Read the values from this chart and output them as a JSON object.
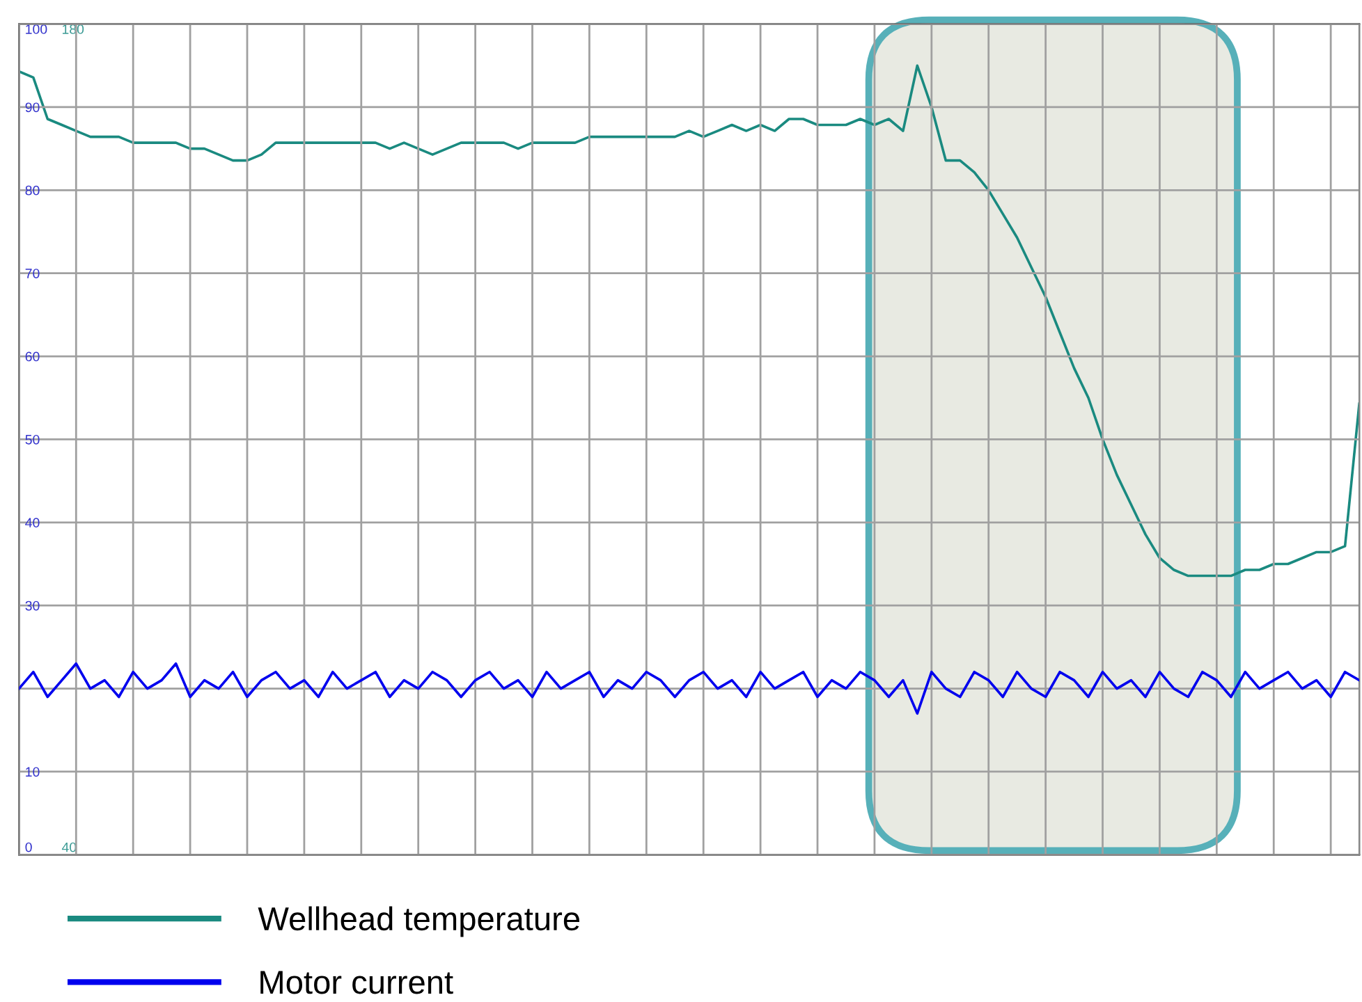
{
  "chart_data": {
    "type": "line",
    "categories": [
      null,
      null,
      null,
      null,
      null,
      null,
      null,
      null,
      null,
      null,
      null,
      null,
      null,
      null,
      null,
      null,
      null,
      null,
      null,
      null,
      null,
      null,
      null,
      null,
      null,
      null,
      null,
      null,
      null,
      null,
      null,
      null,
      null,
      null,
      null,
      null,
      null,
      null,
      null,
      null,
      null,
      null,
      null,
      null,
      null,
      null,
      null,
      null,
      null,
      null,
      null,
      null,
      null,
      null,
      null,
      null,
      null,
      null,
      null,
      null,
      null,
      null,
      null,
      null,
      null,
      null,
      null,
      null,
      null,
      null,
      null,
      null,
      null,
      null,
      null,
      null,
      null,
      null,
      null,
      null,
      null,
      null,
      null,
      null,
      null,
      null,
      null,
      null,
      null,
      null,
      null,
      null,
      null,
      null,
      null
    ],
    "series": [
      {
        "name": "Wellhead temperature",
        "color": "#1a8a80",
        "axis": "y2",
        "values": [
          172,
          171,
          164,
          163,
          162,
          161,
          161,
          161,
          160,
          160,
          160,
          160,
          159,
          159,
          158,
          157,
          157,
          158,
          160,
          160,
          160,
          160,
          160,
          160,
          160,
          160,
          159,
          160,
          159,
          158,
          159,
          160,
          160,
          160,
          160,
          159,
          160,
          160,
          160,
          160,
          161,
          161,
          161,
          161,
          161,
          161,
          161,
          162,
          161,
          162,
          163,
          162,
          163,
          162,
          164,
          164,
          163,
          163,
          163,
          164,
          163,
          164,
          162,
          173,
          166,
          157,
          157,
          155,
          152,
          148,
          144,
          139,
          134,
          128,
          122,
          117,
          110,
          104,
          99,
          94,
          90,
          88,
          87,
          87,
          87,
          87,
          88,
          88,
          89,
          89,
          90,
          91,
          91,
          92,
          116
        ]
      },
      {
        "name": "Motor current",
        "color": "#0000ee",
        "axis": "y",
        "values": [
          20,
          22,
          19,
          21,
          23,
          20,
          21,
          19,
          22,
          20,
          21,
          23,
          19,
          21,
          20,
          22,
          19,
          21,
          22,
          20,
          21,
          19,
          22,
          20,
          21,
          22,
          19,
          21,
          20,
          22,
          21,
          19,
          21,
          22,
          20,
          21,
          19,
          22,
          20,
          21,
          22,
          19,
          21,
          20,
          22,
          21,
          19,
          21,
          22,
          20,
          21,
          19,
          22,
          20,
          21,
          22,
          19,
          21,
          20,
          22,
          21,
          19,
          21,
          17,
          22,
          20,
          19,
          22,
          21,
          19,
          22,
          20,
          19,
          22,
          21,
          19,
          22,
          20,
          21,
          19,
          22,
          20,
          19,
          22,
          21,
          19,
          22,
          20,
          21,
          22,
          20,
          21,
          19,
          22,
          21
        ]
      }
    ],
    "ylim": [
      0,
      100
    ],
    "yticks": [
      0,
      10,
      {
        "value": 20,
        "label": null
      },
      30,
      40,
      50,
      60,
      70,
      80,
      90,
      100
    ],
    "y2lim": [
      40,
      180
    ],
    "y2ticks": [
      40,
      180
    ],
    "grid": true,
    "legend": "bottom",
    "tick_labels": "y"
  }
}
